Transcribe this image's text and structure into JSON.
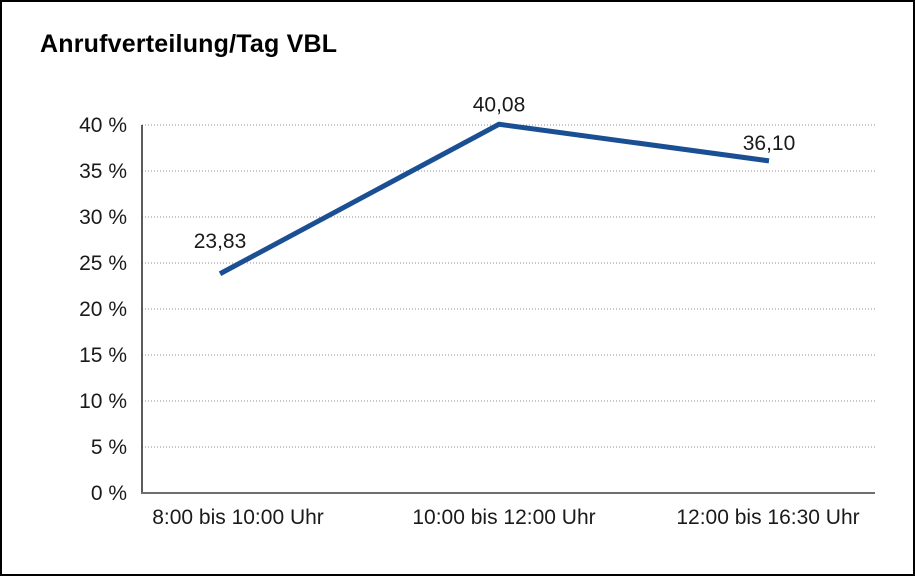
{
  "page": {
    "title": "Anrufverteilung/Tag VBL"
  },
  "chart_data": {
    "type": "line",
    "title": "Anrufverteilung/Tag VBL",
    "categories": [
      "8:00 bis 10:00 Uhr",
      "10:00 bis 12:00 Uhr",
      "12:00 bis 16:30 Uhr"
    ],
    "values": [
      23.83,
      40.08,
      36.1
    ],
    "data_labels": [
      "23,83",
      "40,08",
      "36,10"
    ],
    "y_ticks": [
      {
        "value": 0,
        "label": "0 %"
      },
      {
        "value": 5,
        "label": "5 %"
      },
      {
        "value": 10,
        "label": "10 %"
      },
      {
        "value": 15,
        "label": "15 %"
      },
      {
        "value": 20,
        "label": "20 %"
      },
      {
        "value": 25,
        "label": "25 %"
      },
      {
        "value": 30,
        "label": "30 %"
      },
      {
        "value": 35,
        "label": "35 %"
      },
      {
        "value": 40,
        "label": "40 %"
      }
    ],
    "ylim": [
      0,
      40
    ],
    "xlabel": "",
    "ylabel": "",
    "legend": "none",
    "grid": "horizontal-dotted",
    "line_color": "#1a4f93",
    "text_color": "#1a1a1a"
  }
}
